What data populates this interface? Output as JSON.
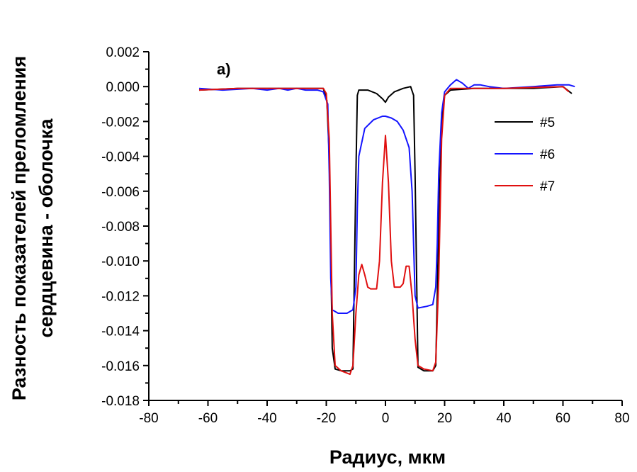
{
  "chart_data": {
    "type": "line",
    "title": "",
    "panel_label": "a)",
    "xlabel": "Радиус, мкм",
    "ylabel_line1": "Разность показателей преломления",
    "ylabel_line2": "сердцевина - оболочка",
    "xlim": [
      -80,
      80
    ],
    "ylim": [
      -0.018,
      0.002
    ],
    "xticks": [
      -80,
      -60,
      -40,
      -20,
      0,
      20,
      40,
      60,
      80
    ],
    "xtick_labels": [
      "-80",
      "-60",
      "-40",
      "-20",
      "0",
      "20",
      "40",
      "60",
      "80"
    ],
    "yticks": [
      -0.018,
      -0.016,
      -0.014,
      -0.012,
      -0.01,
      -0.008,
      -0.006,
      -0.004,
      -0.002,
      0.0,
      0.002
    ],
    "ytick_labels": [
      "-0.018",
      "-0.016",
      "-0.014",
      "-0.012",
      "-0.010",
      "-0.008",
      "-0.006",
      "-0.004",
      "-0.002",
      "0.000",
      "0.002"
    ],
    "grid": false,
    "legend_position": "right",
    "series": [
      {
        "name": "#5",
        "color": "#000000",
        "points": [
          [
            -63,
            -0.0002
          ],
          [
            -50,
            -0.0001
          ],
          [
            -30,
            -0.0001
          ],
          [
            -21,
            -0.0001
          ],
          [
            -19.8,
            -0.0008
          ],
          [
            -19,
            -0.004
          ],
          [
            -18,
            -0.015
          ],
          [
            -17,
            -0.0162
          ],
          [
            -15,
            -0.0163
          ],
          [
            -12,
            -0.0163
          ],
          [
            -11,
            -0.0162
          ],
          [
            -10,
            -0.005
          ],
          [
            -9.5,
            -0.0005
          ],
          [
            -9,
            -0.0002
          ],
          [
            -6,
            -0.0002
          ],
          [
            -3,
            -0.0004
          ],
          [
            -1,
            -0.0007
          ],
          [
            0,
            -0.0009
          ],
          [
            1,
            -0.0006
          ],
          [
            3,
            -0.0003
          ],
          [
            6,
            -0.0001
          ],
          [
            8.5,
            0.0
          ],
          [
            9.5,
            -0.0005
          ],
          [
            10,
            -0.005
          ],
          [
            11,
            -0.0161
          ],
          [
            13,
            -0.0163
          ],
          [
            16,
            -0.0163
          ],
          [
            17,
            -0.016
          ],
          [
            18,
            -0.008
          ],
          [
            19,
            -0.002
          ],
          [
            20,
            -0.0005
          ],
          [
            22,
            -0.0002
          ],
          [
            30,
            -0.0001
          ],
          [
            50,
            -0.0001
          ],
          [
            60,
            0.0
          ],
          [
            63,
            -0.0004
          ]
        ]
      },
      {
        "name": "#6",
        "color": "#1414ff",
        "points": [
          [
            -63,
            -0.0001
          ],
          [
            -55,
            -0.0002
          ],
          [
            -45,
            -0.0001
          ],
          [
            -40,
            -0.0002
          ],
          [
            -36,
            -0.0001
          ],
          [
            -33,
            -0.0002
          ],
          [
            -30,
            -0.0001
          ],
          [
            -27,
            -0.0002
          ],
          [
            -23,
            -0.0002
          ],
          [
            -21,
            -0.0003
          ],
          [
            -19.5,
            -0.001
          ],
          [
            -19,
            -0.005
          ],
          [
            -18.5,
            -0.011
          ],
          [
            -18,
            -0.0128
          ],
          [
            -16,
            -0.013
          ],
          [
            -13,
            -0.013
          ],
          [
            -11,
            -0.0128
          ],
          [
            -10,
            -0.0115
          ],
          [
            -9.5,
            -0.007
          ],
          [
            -9,
            -0.004
          ],
          [
            -7,
            -0.0024
          ],
          [
            -4,
            -0.0019
          ],
          [
            -1,
            -0.0017
          ],
          [
            0,
            -0.0017
          ],
          [
            2,
            -0.0018
          ],
          [
            4,
            -0.002
          ],
          [
            6,
            -0.0025
          ],
          [
            8,
            -0.0035
          ],
          [
            9,
            -0.006
          ],
          [
            10,
            -0.012
          ],
          [
            11,
            -0.0127
          ],
          [
            14,
            -0.0126
          ],
          [
            16,
            -0.0125
          ],
          [
            17,
            -0.0115
          ],
          [
            17.5,
            -0.009
          ],
          [
            18,
            -0.005
          ],
          [
            19,
            -0.0015
          ],
          [
            20,
            -0.0003
          ],
          [
            22,
            0.0001
          ],
          [
            24,
            0.0004
          ],
          [
            26,
            0.0002
          ],
          [
            28,
            -0.0001
          ],
          [
            30,
            0.0001
          ],
          [
            32,
            0.0001
          ],
          [
            35,
            0.0
          ],
          [
            40,
            -0.0001
          ],
          [
            50,
            0.0
          ],
          [
            58,
            0.0001
          ],
          [
            62,
            0.0001
          ],
          [
            64,
            0.0
          ]
        ]
      },
      {
        "name": "#7",
        "color": "#e01010",
        "points": [
          [
            -63,
            -0.0002
          ],
          [
            -50,
            -0.0001
          ],
          [
            -30,
            -0.0001
          ],
          [
            -21,
            -0.0001
          ],
          [
            -20,
            -0.0004
          ],
          [
            -19,
            -0.003
          ],
          [
            -18,
            -0.013
          ],
          [
            -17,
            -0.016
          ],
          [
            -15,
            -0.0163
          ],
          [
            -12,
            -0.0165
          ],
          [
            -11,
            -0.016
          ],
          [
            -10,
            -0.013
          ],
          [
            -9,
            -0.0108
          ],
          [
            -8,
            -0.0102
          ],
          [
            -7,
            -0.0108
          ],
          [
            -6,
            -0.0115
          ],
          [
            -5,
            -0.0116
          ],
          [
            -3,
            -0.0116
          ],
          [
            -2,
            -0.01
          ],
          [
            -1,
            -0.0055
          ],
          [
            0,
            -0.0028
          ],
          [
            1,
            -0.0055
          ],
          [
            2,
            -0.01
          ],
          [
            3,
            -0.0115
          ],
          [
            5,
            -0.0115
          ],
          [
            6,
            -0.0113
          ],
          [
            7,
            -0.0103
          ],
          [
            8,
            -0.0103
          ],
          [
            9,
            -0.012
          ],
          [
            10,
            -0.0145
          ],
          [
            11,
            -0.016
          ],
          [
            13,
            -0.0162
          ],
          [
            16,
            -0.0163
          ],
          [
            17,
            -0.0158
          ],
          [
            18,
            -0.011
          ],
          [
            19,
            -0.003
          ],
          [
            20,
            -0.0005
          ],
          [
            22,
            -0.0001
          ],
          [
            40,
            -0.0001
          ],
          [
            60,
            0.0
          ],
          [
            62,
            -0.0003
          ]
        ]
      }
    ]
  }
}
